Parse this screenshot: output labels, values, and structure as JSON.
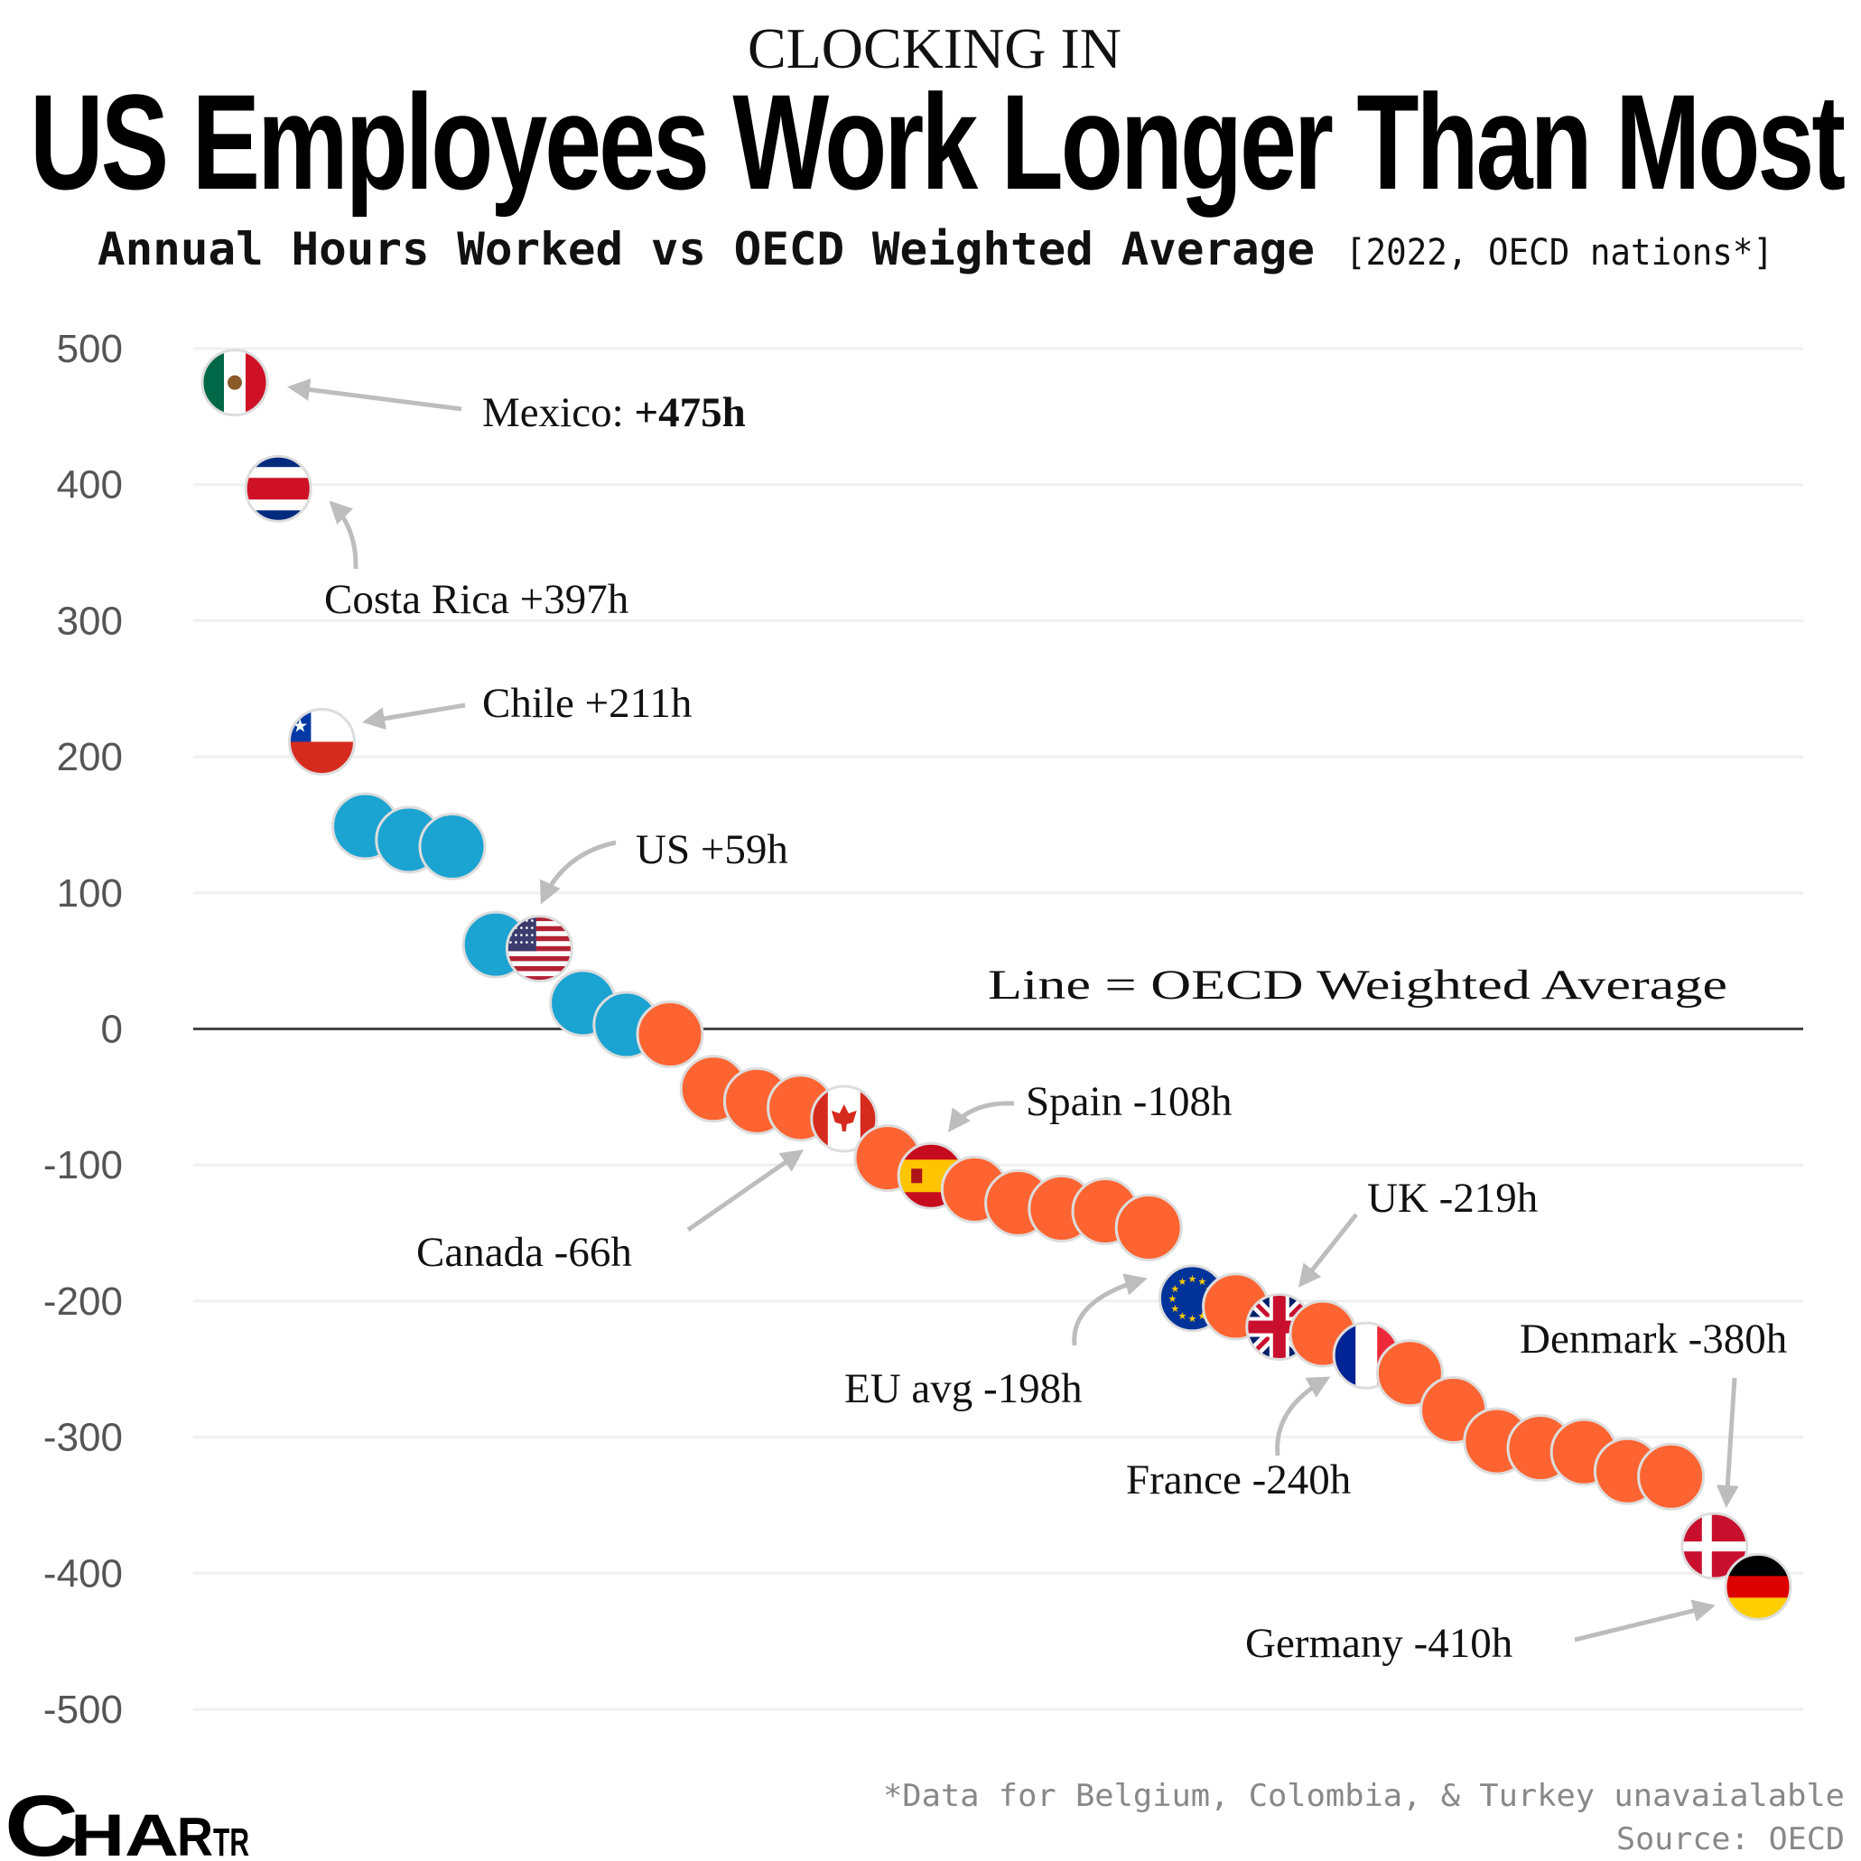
{
  "header": {
    "kicker": "CLOCKING IN",
    "title": "US Employees Work Longer Than Most",
    "subtitle": "Annual Hours Worked vs OECD Weighted Average",
    "subtitle_bracket": "[2022, OECD nations*]"
  },
  "footer": {
    "footnote": "*Data for Belgium, Colombia, & Turkey unavaialable",
    "source": "Source: OECD",
    "logo": "CHARTR"
  },
  "chart_data": {
    "type": "scatter",
    "title": "US Employees Work Longer Than Most",
    "ylabel": "",
    "xlabel": "",
    "ylim": [
      -500,
      500
    ],
    "yticks": [
      500,
      400,
      300,
      200,
      100,
      0,
      -100,
      -200,
      -300,
      -400,
      -500
    ],
    "grid": true,
    "reference_line": {
      "value": 0,
      "label": "Line = OECD Weighted Average"
    },
    "colors": {
      "above": "#1ba3d1",
      "below": "#fd6431",
      "outline": "#dddddd",
      "reference": "#444444"
    },
    "points": [
      {
        "rank": 1,
        "value": 475,
        "flag": "mexico"
      },
      {
        "rank": 2,
        "value": 397,
        "flag": "costa-rica"
      },
      {
        "rank": 3,
        "value": 211,
        "flag": "chile"
      },
      {
        "rank": 4,
        "value": 149
      },
      {
        "rank": 5,
        "value": 139
      },
      {
        "rank": 6,
        "value": 134
      },
      {
        "rank": 7,
        "value": 62
      },
      {
        "rank": 8,
        "value": 59,
        "flag": "us"
      },
      {
        "rank": 9,
        "value": 19
      },
      {
        "rank": 10,
        "value": 3
      },
      {
        "rank": 11,
        "value": -4
      },
      {
        "rank": 12,
        "value": -44
      },
      {
        "rank": 13,
        "value": -53
      },
      {
        "rank": 14,
        "value": -58
      },
      {
        "rank": 15,
        "value": -66,
        "flag": "canada"
      },
      {
        "rank": 16,
        "value": -95
      },
      {
        "rank": 17,
        "value": -108,
        "flag": "spain"
      },
      {
        "rank": 18,
        "value": -118
      },
      {
        "rank": 19,
        "value": -128
      },
      {
        "rank": 20,
        "value": -132
      },
      {
        "rank": 21,
        "value": -134
      },
      {
        "rank": 22,
        "value": -146
      },
      {
        "rank": 23,
        "value": -198,
        "flag": "eu"
      },
      {
        "rank": 24,
        "value": -204
      },
      {
        "rank": 25,
        "value": -219,
        "flag": "uk"
      },
      {
        "rank": 26,
        "value": -224
      },
      {
        "rank": 27,
        "value": -240,
        "flag": "france"
      },
      {
        "rank": 28,
        "value": -253
      },
      {
        "rank": 29,
        "value": -280
      },
      {
        "rank": 30,
        "value": -303
      },
      {
        "rank": 31,
        "value": -308
      },
      {
        "rank": 32,
        "value": -311
      },
      {
        "rank": 33,
        "value": -325
      },
      {
        "rank": 34,
        "value": -329
      },
      {
        "rank": 35,
        "value": -380,
        "flag": "denmark"
      },
      {
        "rank": 36,
        "value": -410,
        "flag": "germany"
      }
    ],
    "annotations": {
      "mexico_name": "Mexico: ",
      "mexico_value": "+475h",
      "costa_rica": "Costa Rica +397h",
      "chile": "Chile +211h",
      "us": "US +59h",
      "spain": "Spain -108h",
      "canada": "Canada -66h",
      "uk": "UK -219h",
      "eu": "EU avg -198h",
      "france": "France -240h",
      "denmark": "Denmark -380h",
      "germany": "Germany -410h"
    }
  }
}
